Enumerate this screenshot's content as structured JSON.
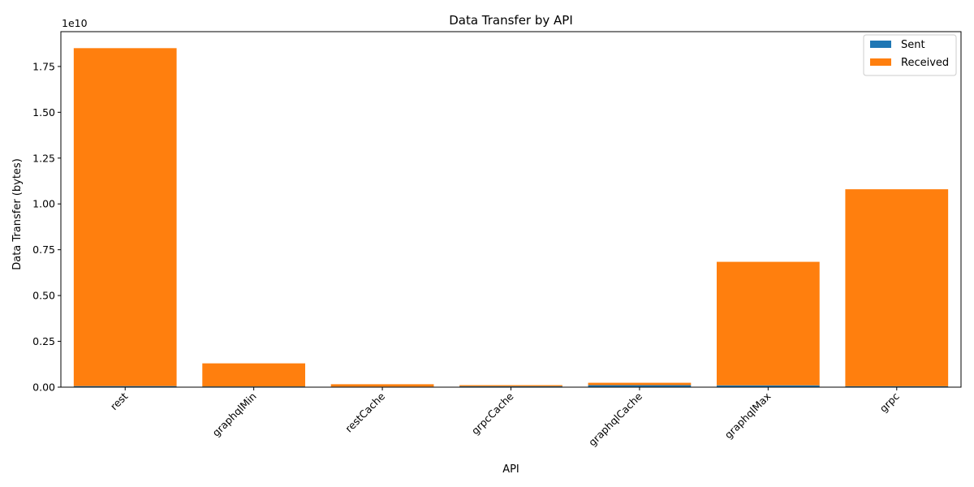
{
  "chart_data": {
    "type": "bar",
    "stacked": true,
    "title": "Data Transfer by API",
    "xlabel": "API",
    "ylabel": "Data Transfer (bytes)",
    "y_offset_text": "1e10",
    "y_scale": 10000000000,
    "ylim": [
      0,
      19400000000
    ],
    "yticks": [
      0,
      2500000000,
      5000000000,
      7500000000,
      10000000000,
      12500000000,
      15000000000,
      17500000000
    ],
    "ytick_labels": [
      "0.00",
      "0.25",
      "0.50",
      "0.75",
      "1.00",
      "1.25",
      "1.50",
      "1.75"
    ],
    "categories": [
      "rest",
      "graphqlMin",
      "restCache",
      "grpcCache",
      "graphqlCache",
      "graphqlMax",
      "grpc"
    ],
    "series": [
      {
        "name": "Sent",
        "color": "#1f77b4",
        "values": [
          60000000,
          40000000,
          30000000,
          50000000,
          110000000,
          100000000,
          50000000
        ]
      },
      {
        "name": "Received",
        "color": "#ff7f0e",
        "values": [
          18440000000,
          1260000000,
          130000000,
          60000000,
          130000000,
          6740000000,
          10750000000
        ]
      }
    ],
    "legend": {
      "position": "top-right"
    },
    "grid": false
  }
}
